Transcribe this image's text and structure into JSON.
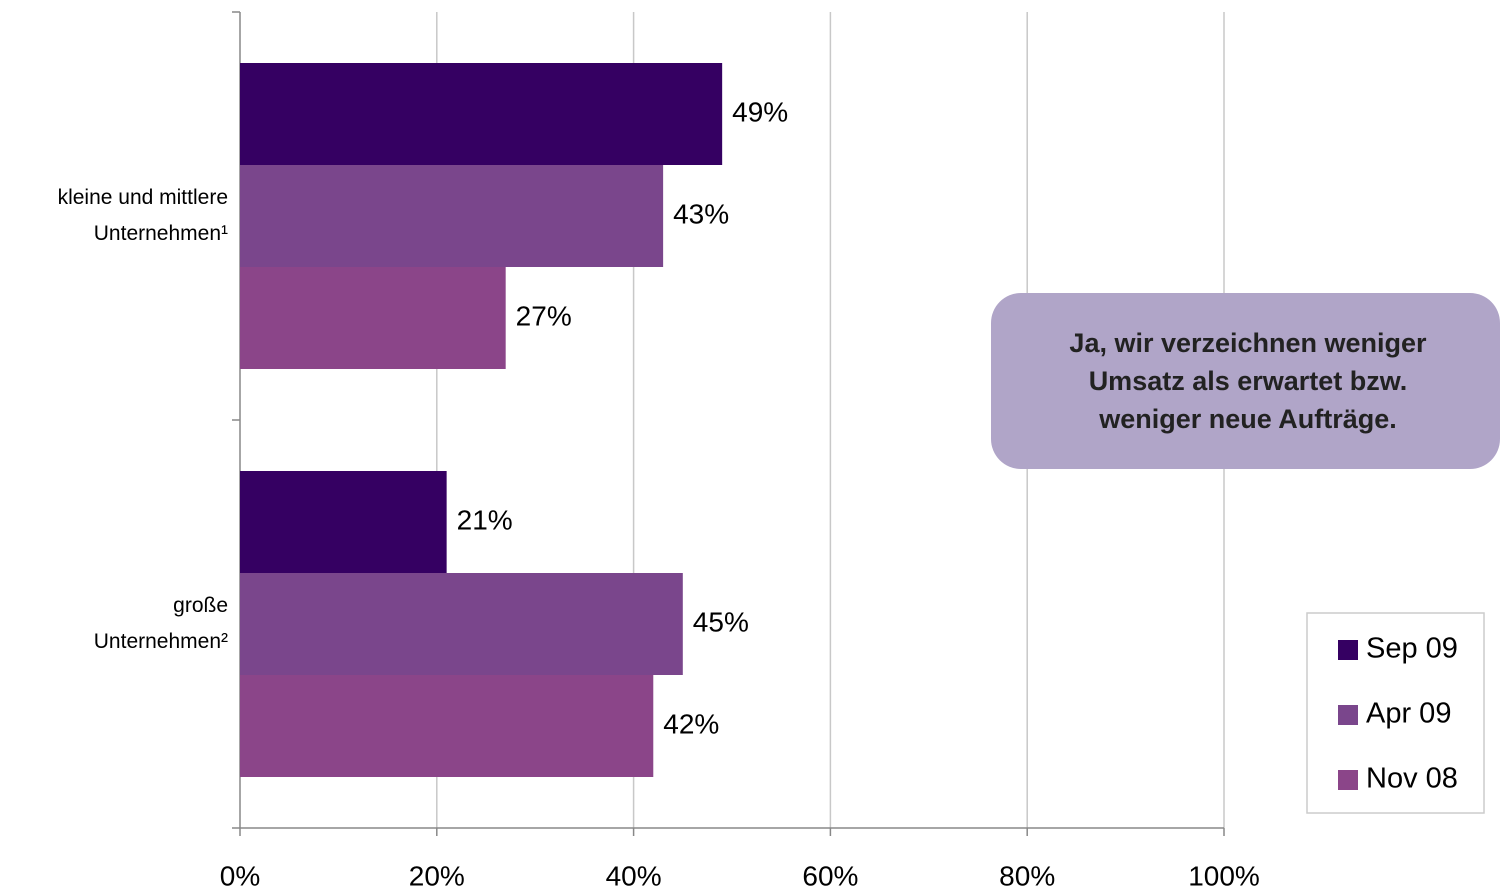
{
  "chart_data": {
    "type": "hbar",
    "categories": [
      [
        "kleine und mittlere",
        "Unternehmen¹"
      ],
      [
        "große",
        "Unternehmen²"
      ]
    ],
    "series": [
      {
        "name": "Sep 09",
        "color": "#350062",
        "values": [
          49,
          21
        ],
        "value_labels": [
          "49%",
          "21%"
        ]
      },
      {
        "name": "Apr 09",
        "color": "#7a468c",
        "values": [
          43,
          45
        ],
        "value_labels": [
          "43%",
          "45%"
        ]
      },
      {
        "name": "Nov 08",
        "color": "#8b4589",
        "values": [
          27,
          42
        ],
        "value_labels": [
          "27%",
          "42%"
        ]
      }
    ],
    "xlim": [
      0,
      100
    ],
    "xticks": [
      {
        "value": 0,
        "label": "0%"
      },
      {
        "value": 20,
        "label": "20%"
      },
      {
        "value": 40,
        "label": "40%"
      },
      {
        "value": 60,
        "label": "60%"
      },
      {
        "value": 80,
        "label": "80%"
      },
      {
        "value": 100,
        "label": "100%"
      }
    ],
    "grid": true,
    "legend": "right",
    "annotation": [
      "Ja, wir verzeichnen weniger",
      "Umsatz als erwartet bzw.",
      "weniger neue Aufträge."
    ]
  }
}
